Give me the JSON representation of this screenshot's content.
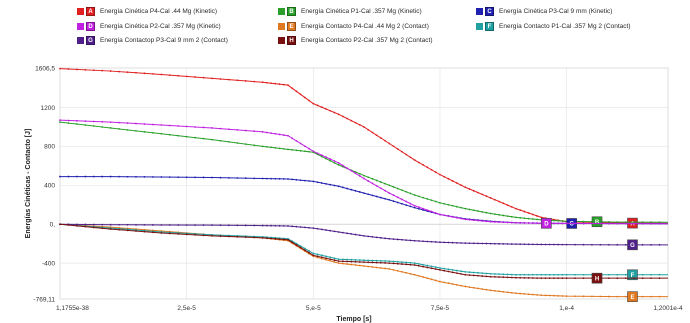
{
  "chart_data": {
    "type": "line",
    "xlabel": "Tiempo [s]",
    "ylabel": "Energías Cinéticas - Contacto [J]",
    "xlim": [
      0,
      0.00012001
    ],
    "ylim": [
      -769.11,
      1606.5
    ],
    "x_tick_labels": [
      {
        "value": 0,
        "label": "1,1755e-38"
      },
      {
        "value": 2.5e-05,
        "label": "2,5e-5"
      },
      {
        "value": 5e-05,
        "label": "5,e-5"
      },
      {
        "value": 7.5e-05,
        "label": "7,5e-5"
      },
      {
        "value": 0.0001,
        "label": "1,e-4"
      },
      {
        "value": 0.00012001,
        "label": "1,2001e-4"
      }
    ],
    "y_tick_labels": [
      {
        "value": 1606.5,
        "label": "1606,5"
      },
      {
        "value": 1200,
        "label": "1200"
      },
      {
        "value": 800,
        "label": "800"
      },
      {
        "value": 400,
        "label": "400"
      },
      {
        "value": 0,
        "label": "0,"
      },
      {
        "value": -400,
        "label": "-400"
      },
      {
        "value": -769.11,
        "label": "-769,11"
      }
    ],
    "grid": true,
    "legend_position": "top",
    "series": [
      {
        "name": "Energía Cinética P4-Cal .44 Mg  (Kinetic)",
        "badge": "A",
        "color": "#e02020",
        "x": [
          0,
          1e-05,
          2e-05,
          3e-05,
          4e-05,
          4.5e-05,
          5e-05,
          5.5e-05,
          6e-05,
          6.5e-05,
          7e-05,
          7.5e-05,
          8e-05,
          8.5e-05,
          9e-05,
          9.5e-05,
          0.0001,
          0.00011,
          0.00012
        ],
        "y": [
          1600,
          1575,
          1540,
          1500,
          1460,
          1430,
          1240,
          1130,
          1000,
          830,
          660,
          510,
          380,
          270,
          160,
          70,
          25,
          12,
          10
        ]
      },
      {
        "name": "Energía Cinética P1-Cal .357 Mg  (Kinetic)",
        "badge": "B",
        "color": "#2aa02a",
        "x": [
          0,
          1e-05,
          2e-05,
          3e-05,
          4e-05,
          4.5e-05,
          5e-05,
          5.5e-05,
          6e-05,
          6.5e-05,
          7e-05,
          7.5e-05,
          8e-05,
          8.5e-05,
          9e-05,
          9.5e-05,
          0.0001,
          0.00011,
          0.00012
        ],
        "y": [
          1050,
          990,
          930,
          870,
          800,
          770,
          740,
          610,
          500,
          400,
          300,
          220,
          160,
          110,
          70,
          45,
          30,
          22,
          20
        ]
      },
      {
        "name": "Energía Cinética P3-Cal 9 mm  (Kinetic)",
        "badge": "C",
        "color": "#2020b0",
        "x": [
          0,
          1e-05,
          2e-05,
          3e-05,
          4e-05,
          4.5e-05,
          5e-05,
          5.5e-05,
          6e-05,
          6.5e-05,
          7e-05,
          7.5e-05,
          8e-05,
          8.5e-05,
          9e-05,
          9.5e-05,
          0.0001,
          0.00011,
          0.00012
        ],
        "y": [
          490,
          490,
          485,
          480,
          470,
          465,
          440,
          390,
          320,
          250,
          170,
          100,
          55,
          30,
          15,
          10,
          8,
          6,
          5
        ]
      },
      {
        "name": "Energía Cinética P2-Cal .357 Mg  (Kinetic)",
        "badge": "D",
        "color": "#c020e0",
        "x": [
          0,
          1e-05,
          2e-05,
          3e-05,
          4e-05,
          4.5e-05,
          5e-05,
          5.5e-05,
          6e-05,
          6.5e-05,
          7e-05,
          7.5e-05,
          8e-05,
          8.5e-05,
          9e-05,
          9.5e-05,
          0.0001,
          0.00011,
          0.00012
        ],
        "y": [
          1070,
          1050,
          1020,
          990,
          950,
          910,
          750,
          630,
          470,
          320,
          190,
          100,
          50,
          25,
          15,
          10,
          8,
          6,
          5
        ]
      },
      {
        "name": "Energía Contacto P4-Cal .44 Mg 2  (Contact)",
        "badge": "E",
        "color": "#e07820",
        "x": [
          0,
          1e-05,
          2e-05,
          3e-05,
          4e-05,
          4.5e-05,
          5e-05,
          5.5e-05,
          6e-05,
          6.5e-05,
          7e-05,
          7.5e-05,
          8e-05,
          8.5e-05,
          9e-05,
          9.5e-05,
          0.0001,
          0.00011,
          0.00012
        ],
        "y": [
          0,
          -30,
          -70,
          -110,
          -140,
          -170,
          -330,
          -400,
          -430,
          -460,
          -520,
          -590,
          -640,
          -680,
          -710,
          -730,
          -740,
          -745,
          -745
        ]
      },
      {
        "name": "Energía Contacto P1-Cal .357 Mg 2  (Contact)",
        "badge": "F",
        "color": "#20a0a0",
        "x": [
          0,
          1e-05,
          2e-05,
          3e-05,
          4e-05,
          4.5e-05,
          5e-05,
          5.5e-05,
          6e-05,
          6.5e-05,
          7e-05,
          7.5e-05,
          8e-05,
          8.5e-05,
          9e-05,
          9.5e-05,
          0.0001,
          0.00011,
          0.00012
        ],
        "y": [
          0,
          -40,
          -80,
          -110,
          -130,
          -150,
          -300,
          -360,
          -370,
          -380,
          -400,
          -450,
          -490,
          -510,
          -520,
          -520,
          -520,
          -520,
          -520
        ]
      },
      {
        "name": "Energía Contactop P3-Cal 9 mm 2  (Contact)",
        "badge": "G",
        "color": "#50208a",
        "x": [
          0,
          1e-05,
          2e-05,
          3e-05,
          4e-05,
          4.5e-05,
          5e-05,
          5.5e-05,
          6e-05,
          6.5e-05,
          7e-05,
          7.5e-05,
          8e-05,
          8.5e-05,
          9e-05,
          9.5e-05,
          0.0001,
          0.00011,
          0.00012
        ],
        "y": [
          0,
          -5,
          -8,
          -10,
          -14,
          -18,
          -40,
          -80,
          -120,
          -150,
          -170,
          -185,
          -195,
          -200,
          -205,
          -208,
          -210,
          -212,
          -212
        ]
      },
      {
        "name": "Energía Contacto P2-Cal .357 Mg 2  (Contact)",
        "badge": "H",
        "color": "#7a1010",
        "x": [
          0,
          1e-05,
          2e-05,
          3e-05,
          4e-05,
          4.5e-05,
          5e-05,
          5.5e-05,
          6e-05,
          6.5e-05,
          7e-05,
          7.5e-05,
          8e-05,
          8.5e-05,
          9e-05,
          9.5e-05,
          0.0001,
          0.00011,
          0.00012
        ],
        "y": [
          0,
          -50,
          -90,
          -120,
          -140,
          -160,
          -320,
          -380,
          -390,
          -400,
          -420,
          -470,
          -520,
          -540,
          -550,
          -555,
          -555,
          -555,
          -555
        ]
      }
    ]
  }
}
